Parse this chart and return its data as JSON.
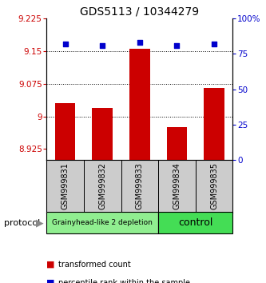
{
  "title": "GDS5113 / 10344279",
  "samples": [
    "GSM999831",
    "GSM999832",
    "GSM999833",
    "GSM999834",
    "GSM999835"
  ],
  "bar_values": [
    9.03,
    9.02,
    9.155,
    8.975,
    9.065
  ],
  "percentile_values": [
    82,
    81,
    83,
    81,
    82
  ],
  "ylim_left": [
    8.9,
    9.225
  ],
  "ylim_right": [
    0,
    100
  ],
  "yticks_left": [
    8.925,
    9.0,
    9.075,
    9.15,
    9.225
  ],
  "ytick_labels_left": [
    "8.925",
    "9",
    "9.075",
    "9.15",
    "9.225"
  ],
  "yticks_right": [
    0,
    25,
    50,
    75,
    100
  ],
  "ytick_labels_right": [
    "0",
    "25",
    "50",
    "75",
    "100%"
  ],
  "hlines": [
    9.0,
    9.075,
    9.15
  ],
  "bar_color": "#CC0000",
  "scatter_color": "#0000CC",
  "bar_bottom": 8.9,
  "groups": [
    {
      "label": "Grainyhead-like 2 depletion",
      "samples": [
        0,
        1,
        2
      ],
      "color": "#90EE90",
      "text_size": 6.5
    },
    {
      "label": "control",
      "samples": [
        3,
        4
      ],
      "color": "#44DD55",
      "text_size": 9
    }
  ],
  "protocol_label": "protocol",
  "legend_items": [
    {
      "color": "#CC0000",
      "label": "transformed count"
    },
    {
      "color": "#0000CC",
      "label": "percentile rank within the sample"
    }
  ],
  "title_fontsize": 10,
  "tick_fontsize": 7.5,
  "left_tick_color": "#CC0000",
  "right_tick_color": "#0000CC",
  "sample_label_fontsize": 7,
  "bar_width": 0.55
}
